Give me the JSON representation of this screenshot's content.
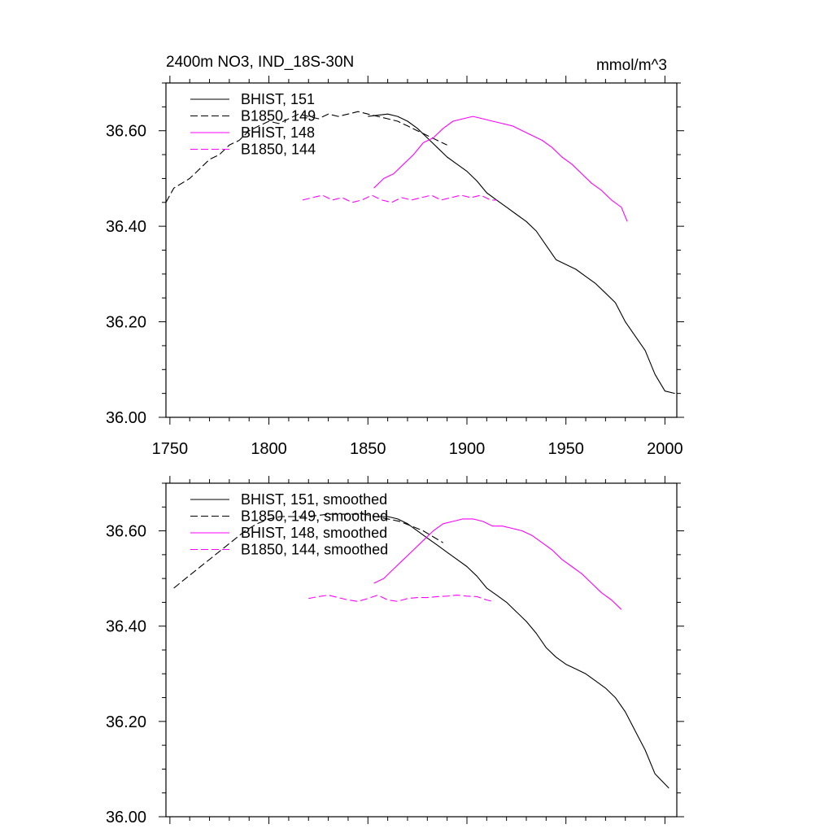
{
  "chart_data": [
    {
      "type": "line",
      "title": "2400m NO3, IND_18S-30N",
      "units": "mmol/m^3",
      "xlabel": "",
      "ylabel": "",
      "xlim": [
        1748,
        2006
      ],
      "ylim": [
        36.0,
        36.7
      ],
      "x_ticks": [
        "1750",
        "1800",
        "1850",
        "1900",
        "1950",
        "2000"
      ],
      "y_ticks": [
        "36.00",
        "36.20",
        "36.40",
        "36.60"
      ],
      "legend_position": "top-left",
      "grid": false,
      "series": [
        {
          "name": "BHIST, 151",
          "color": "#000000",
          "dash": "solid",
          "x": [
            1850,
            1860,
            1865,
            1870,
            1875,
            1880,
            1885,
            1890,
            1895,
            1900,
            1905,
            1910,
            1915,
            1920,
            1925,
            1930,
            1935,
            1940,
            1945,
            1950,
            1955,
            1960,
            1965,
            1970,
            1975,
            1980,
            1985,
            1990,
            1995,
            2000,
            2005
          ],
          "y": [
            36.63,
            36.635,
            36.63,
            36.62,
            36.605,
            36.585,
            36.565,
            36.545,
            36.53,
            36.515,
            36.495,
            36.47,
            36.455,
            36.44,
            36.425,
            36.41,
            36.39,
            36.36,
            36.33,
            36.32,
            36.31,
            36.295,
            36.28,
            36.26,
            36.24,
            36.2,
            36.17,
            36.14,
            36.09,
            36.055,
            36.05
          ]
        },
        {
          "name": "B1850, 149",
          "color": "#000000",
          "dash": "dashed",
          "x": [
            1748,
            1752,
            1756,
            1760,
            1765,
            1770,
            1775,
            1780,
            1785,
            1790,
            1795,
            1800,
            1805,
            1810,
            1815,
            1820,
            1825,
            1830,
            1835,
            1840,
            1845,
            1850,
            1855,
            1860,
            1865,
            1870,
            1875,
            1880,
            1885,
            1890
          ],
          "y": [
            36.45,
            36.48,
            36.49,
            36.5,
            36.52,
            36.54,
            36.55,
            36.57,
            36.58,
            36.6,
            36.61,
            36.62,
            36.615,
            36.625,
            36.635,
            36.63,
            36.625,
            36.635,
            36.63,
            36.635,
            36.64,
            36.635,
            36.63,
            36.625,
            36.62,
            36.61,
            36.6,
            36.59,
            36.58,
            36.57
          ]
        },
        {
          "name": "BHIST, 148",
          "color": "#ff00ff",
          "dash": "solid",
          "x": [
            1853,
            1858,
            1863,
            1868,
            1873,
            1878,
            1883,
            1888,
            1893,
            1898,
            1903,
            1908,
            1913,
            1918,
            1923,
            1928,
            1933,
            1938,
            1943,
            1948,
            1953,
            1958,
            1963,
            1968,
            1973,
            1978,
            1981
          ],
          "y": [
            36.48,
            36.5,
            36.51,
            36.53,
            36.55,
            36.575,
            36.585,
            36.605,
            36.62,
            36.625,
            36.63,
            36.625,
            36.62,
            36.615,
            36.61,
            36.6,
            36.59,
            36.58,
            36.565,
            36.545,
            36.53,
            36.51,
            36.49,
            36.475,
            36.455,
            36.44,
            36.41
          ]
        },
        {
          "name": "B1850, 144",
          "color": "#ff00ff",
          "dash": "dashed",
          "x": [
            1817,
            1822,
            1827,
            1832,
            1837,
            1842,
            1847,
            1852,
            1857,
            1862,
            1867,
            1872,
            1877,
            1882,
            1887,
            1892,
            1897,
            1902,
            1907,
            1912,
            1915
          ],
          "y": [
            36.455,
            36.46,
            36.465,
            36.455,
            36.46,
            36.45,
            36.455,
            36.465,
            36.455,
            36.45,
            36.46,
            36.455,
            36.46,
            36.465,
            36.455,
            36.46,
            36.465,
            36.46,
            36.465,
            36.455,
            36.455
          ]
        }
      ]
    },
    {
      "type": "line",
      "title": "",
      "xlabel": "",
      "ylabel": "",
      "xlim": [
        1748,
        2006
      ],
      "ylim": [
        36.0,
        36.7
      ],
      "y_ticks": [
        "36.00",
        "36.20",
        "36.40",
        "36.60"
      ],
      "legend_position": "top-left",
      "grid": false,
      "series": [
        {
          "name": "BHIST, 151, smoothed",
          "color": "#000000",
          "dash": "solid",
          "x": [
            1855,
            1860,
            1865,
            1870,
            1875,
            1880,
            1885,
            1890,
            1895,
            1900,
            1905,
            1910,
            1915,
            1920,
            1925,
            1930,
            1935,
            1940,
            1945,
            1950,
            1955,
            1960,
            1965,
            1970,
            1975,
            1980,
            1985,
            1990,
            1995,
            2002
          ],
          "y": [
            36.63,
            36.63,
            36.625,
            36.615,
            36.6,
            36.585,
            36.57,
            36.555,
            36.54,
            36.525,
            36.505,
            36.48,
            36.465,
            36.45,
            36.43,
            36.41,
            36.385,
            36.355,
            36.335,
            36.32,
            36.31,
            36.3,
            36.285,
            36.27,
            36.25,
            36.22,
            36.18,
            36.14,
            36.09,
            36.06
          ]
        },
        {
          "name": "B1850, 149, smoothed",
          "color": "#000000",
          "dash": "dashed",
          "x": [
            1752,
            1758,
            1764,
            1770,
            1776,
            1782,
            1788,
            1794,
            1800,
            1806,
            1812,
            1818,
            1824,
            1830,
            1836,
            1842,
            1848,
            1854,
            1860,
            1866,
            1872,
            1878,
            1884,
            1888
          ],
          "y": [
            36.48,
            36.5,
            36.52,
            36.54,
            36.56,
            36.58,
            36.6,
            36.615,
            36.625,
            36.63,
            36.63,
            36.63,
            36.632,
            36.635,
            36.635,
            36.635,
            36.635,
            36.63,
            36.625,
            36.62,
            36.61,
            36.6,
            36.585,
            36.575
          ]
        },
        {
          "name": "BHIST, 148, smoothed",
          "color": "#ff00ff",
          "dash": "solid",
          "x": [
            1853,
            1858,
            1863,
            1868,
            1873,
            1878,
            1883,
            1888,
            1893,
            1898,
            1903,
            1908,
            1913,
            1918,
            1923,
            1928,
            1933,
            1938,
            1943,
            1948,
            1953,
            1958,
            1963,
            1968,
            1973,
            1978
          ],
          "y": [
            36.49,
            36.5,
            36.52,
            36.54,
            36.56,
            36.58,
            36.6,
            36.615,
            36.62,
            36.625,
            36.625,
            36.62,
            36.61,
            36.61,
            36.605,
            36.6,
            36.59,
            36.575,
            36.56,
            36.54,
            36.525,
            36.51,
            36.49,
            36.47,
            36.455,
            36.435
          ]
        },
        {
          "name": "B1850, 144, smoothed",
          "color": "#ff00ff",
          "dash": "dashed",
          "x": [
            1820,
            1825,
            1830,
            1835,
            1840,
            1845,
            1850,
            1855,
            1860,
            1865,
            1870,
            1875,
            1880,
            1885,
            1890,
            1895,
            1900,
            1905,
            1910,
            1913
          ],
          "y": [
            36.458,
            36.462,
            36.465,
            36.46,
            36.455,
            36.452,
            36.458,
            36.465,
            36.455,
            36.452,
            36.458,
            36.46,
            36.46,
            36.462,
            36.463,
            36.465,
            36.463,
            36.462,
            36.455,
            36.452
          ]
        }
      ]
    }
  ]
}
